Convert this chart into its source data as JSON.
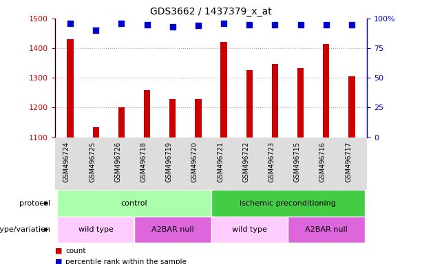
{
  "title": "GDS3662 / 1437379_x_at",
  "samples": [
    "GSM496724",
    "GSM496725",
    "GSM496726",
    "GSM496718",
    "GSM496719",
    "GSM496720",
    "GSM496721",
    "GSM496722",
    "GSM496723",
    "GSM496715",
    "GSM496716",
    "GSM496717"
  ],
  "counts": [
    1430,
    1135,
    1200,
    1258,
    1228,
    1228,
    1420,
    1325,
    1348,
    1333,
    1415,
    1305
  ],
  "percentile_ranks": [
    96,
    90,
    96,
    95,
    93,
    94,
    96,
    95,
    95,
    95,
    95,
    95
  ],
  "ylim_left": [
    1100,
    1500
  ],
  "ylim_right": [
    0,
    100
  ],
  "yticks_left": [
    1100,
    1200,
    1300,
    1400,
    1500
  ],
  "yticks_right": [
    0,
    25,
    50,
    75,
    100
  ],
  "ytick_labels_right": [
    "0",
    "25",
    "50",
    "75",
    "100%"
  ],
  "bar_color": "#cc0000",
  "dot_color": "#0000cc",
  "bar_width": 0.25,
  "dot_size": 30,
  "protocol_groups": [
    {
      "label": "control",
      "start": 0,
      "end": 6,
      "color": "#aaffaa"
    },
    {
      "label": "ischemic preconditioning",
      "start": 6,
      "end": 12,
      "color": "#44cc44"
    }
  ],
  "genotype_groups": [
    {
      "label": "wild type",
      "start": 0,
      "end": 3,
      "color": "#ffccff"
    },
    {
      "label": "A2BAR null",
      "start": 3,
      "end": 6,
      "color": "#dd66dd"
    },
    {
      "label": "wild type",
      "start": 6,
      "end": 9,
      "color": "#ffccff"
    },
    {
      "label": "A2BAR null",
      "start": 9,
      "end": 12,
      "color": "#dd66dd"
    }
  ],
  "legend_items": [
    {
      "label": "count",
      "color": "#cc0000"
    },
    {
      "label": "percentile rank within the sample",
      "color": "#0000cc"
    }
  ],
  "grid_color": "#aaaaaa",
  "grid_lines": [
    1200,
    1300,
    1400
  ],
  "xtick_bg_color": "#dddddd",
  "protocol_label": "protocol",
  "genotype_label": "genotype/variation"
}
